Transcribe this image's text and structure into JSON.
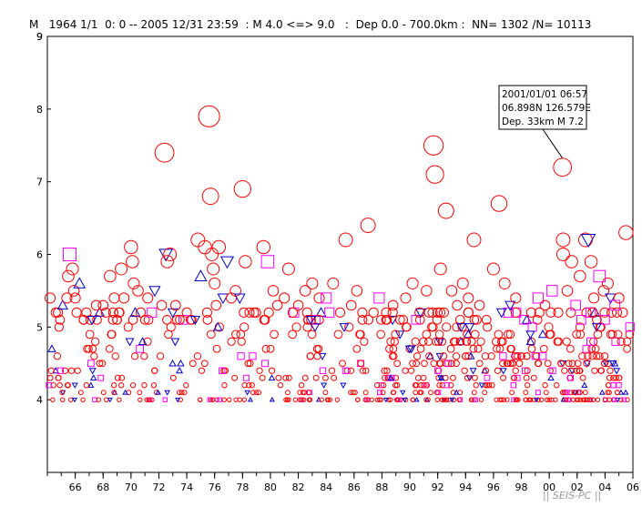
{
  "header": {
    "text": "M   1964 1/1  0: 0 -- 2005 12/31 23:59  : M 4.0 <=> 9.0   :  Dep 0.0 - 700.0km :  NN= 1302 /N= 10113"
  },
  "footer": {
    "text": "|| SEIS-PC ||"
  },
  "chart_data": {
    "type": "scatter",
    "title": "",
    "xlabel": "",
    "ylabel": "",
    "xlim": [
      1964.0,
      2006.0
    ],
    "ylim": [
      3.0,
      9.0
    ],
    "x_tick_labels": [
      "66",
      "68",
      "70",
      "72",
      "74",
      "76",
      "78",
      "80",
      "82",
      "84",
      "86",
      "88",
      "90",
      "92",
      "94",
      "96",
      "98",
      "00",
      "02",
      "04",
      "06"
    ],
    "x_tick_values": [
      1966,
      1968,
      1970,
      1972,
      1974,
      1976,
      1978,
      1980,
      1982,
      1984,
      1986,
      1988,
      1990,
      1992,
      1994,
      1996,
      1998,
      2000,
      2002,
      2004,
      2006
    ],
    "y_tick_labels": [
      "4",
      "5",
      "6",
      "7",
      "8",
      "9"
    ],
    "y_tick_values": [
      4,
      5,
      6,
      7,
      8,
      9
    ],
    "grid": false,
    "legend": "none",
    "colors": {
      "circle": "#ff0000",
      "square": "#ff00ff",
      "triangle_up": "#0000cc",
      "triangle_down": "#0000cc"
    },
    "annotation": {
      "lines": [
        "2001/01/01 06:57",
        "06.898N  126.579E",
        "Dep. 33km    M 7.2"
      ],
      "point": [
        2000.95,
        7.2
      ]
    },
    "large_events": [
      [
        1964.2,
        5.4,
        "c"
      ],
      [
        1964.6,
        5.2,
        "c"
      ],
      [
        1965.1,
        5.3,
        "t_up"
      ],
      [
        1965.4,
        5.4,
        "c"
      ],
      [
        1965.5,
        5.7,
        "c"
      ],
      [
        1965.6,
        6.0,
        "s"
      ],
      [
        1965.8,
        5.8,
        "c"
      ],
      [
        1965.9,
        5.5,
        "c"
      ],
      [
        1966.0,
        5.4,
        "c"
      ],
      [
        1966.1,
        5.2,
        "c"
      ],
      [
        1966.3,
        5.6,
        "t_up"
      ],
      [
        1966.6,
        5.1,
        "c"
      ],
      [
        1966.8,
        5.2,
        "c"
      ],
      [
        1967.2,
        5.1,
        "t_down"
      ],
      [
        1967.5,
        5.3,
        "c"
      ],
      [
        1968.0,
        5.3,
        "c"
      ],
      [
        1968.2,
        5.2,
        "c"
      ],
      [
        1968.5,
        5.7,
        "c"
      ],
      [
        1968.8,
        5.4,
        "c"
      ],
      [
        1969.0,
        5.1,
        "c"
      ],
      [
        1969.3,
        5.8,
        "c"
      ],
      [
        1969.5,
        5.4,
        "c"
      ],
      [
        1969.8,
        5.0,
        "c"
      ],
      [
        1970.0,
        6.1,
        "c"
      ],
      [
        1970.1,
        5.9,
        "c"
      ],
      [
        1970.2,
        5.6,
        "c"
      ],
      [
        1970.3,
        5.2,
        "t_up"
      ],
      [
        1970.5,
        5.5,
        "c"
      ],
      [
        1970.7,
        5.2,
        "c"
      ],
      [
        1971.0,
        5.1,
        "c"
      ],
      [
        1971.2,
        5.4,
        "c"
      ],
      [
        1971.7,
        5.5,
        "t_down"
      ],
      [
        1971.5,
        5.2,
        "s"
      ],
      [
        1972.2,
        5.3,
        "c"
      ],
      [
        1972.4,
        7.4,
        "c"
      ],
      [
        1972.5,
        6.0,
        "t_down"
      ],
      [
        1972.6,
        5.9,
        "c"
      ],
      [
        1972.8,
        6.0,
        "c"
      ],
      [
        1973.0,
        5.2,
        "t_down"
      ],
      [
        1973.2,
        5.3,
        "c"
      ],
      [
        1973.5,
        5.1,
        "c"
      ],
      [
        1974.0,
        5.2,
        "c"
      ],
      [
        1974.6,
        5.1,
        "t_down"
      ],
      [
        1974.8,
        6.2,
        "c"
      ],
      [
        1975.0,
        5.7,
        "t_up"
      ],
      [
        1975.3,
        6.1,
        "c"
      ],
      [
        1975.6,
        7.9,
        "c"
      ],
      [
        1975.7,
        6.8,
        "c"
      ],
      [
        1975.8,
        6.0,
        "c"
      ],
      [
        1975.9,
        5.8,
        "c"
      ],
      [
        1976.0,
        5.6,
        "c"
      ],
      [
        1976.1,
        5.3,
        "c"
      ],
      [
        1976.3,
        6.1,
        "c"
      ],
      [
        1976.6,
        5.4,
        "t_down"
      ],
      [
        1976.9,
        5.9,
        "t_down"
      ],
      [
        1977.2,
        5.4,
        "c"
      ],
      [
        1977.5,
        5.5,
        "c"
      ],
      [
        1977.8,
        5.4,
        "t_down"
      ],
      [
        1978.0,
        6.9,
        "c"
      ],
      [
        1978.2,
        5.9,
        "c"
      ],
      [
        1978.5,
        5.2,
        "c"
      ],
      [
        1979.5,
        6.1,
        "c"
      ],
      [
        1979.8,
        5.9,
        "s"
      ],
      [
        1980.2,
        5.5,
        "c"
      ],
      [
        1980.5,
        5.3,
        "c"
      ],
      [
        1981.0,
        5.4,
        "c"
      ],
      [
        1981.3,
        5.8,
        "c"
      ],
      [
        1981.6,
        5.2,
        "c"
      ],
      [
        1982.0,
        5.3,
        "c"
      ],
      [
        1982.5,
        5.5,
        "c"
      ],
      [
        1982.9,
        5.1,
        "t_down"
      ],
      [
        1983.0,
        5.6,
        "c"
      ],
      [
        1983.5,
        5.4,
        "c"
      ],
      [
        1984.0,
        5.4,
        "s"
      ],
      [
        1984.5,
        5.6,
        "c"
      ],
      [
        1985.0,
        5.2,
        "c"
      ],
      [
        1985.4,
        6.2,
        "c"
      ],
      [
        1985.8,
        5.3,
        "c"
      ],
      [
        1986.2,
        5.5,
        "c"
      ],
      [
        1986.6,
        5.1,
        "c"
      ],
      [
        1987.0,
        6.4,
        "c"
      ],
      [
        1987.4,
        5.2,
        "c"
      ],
      [
        1987.8,
        5.4,
        "s"
      ],
      [
        1988.3,
        5.2,
        "c"
      ],
      [
        1988.8,
        5.3,
        "c"
      ],
      [
        1989.3,
        5.1,
        "c"
      ],
      [
        1989.7,
        5.4,
        "c"
      ],
      [
        1990.2,
        5.6,
        "c"
      ],
      [
        1990.7,
        5.2,
        "c"
      ],
      [
        1991.2,
        5.5,
        "c"
      ],
      [
        1991.7,
        7.5,
        "c"
      ],
      [
        1991.8,
        7.1,
        "c"
      ],
      [
        1992.2,
        5.8,
        "c"
      ],
      [
        1992.6,
        6.6,
        "c"
      ],
      [
        1993.0,
        5.5,
        "c"
      ],
      [
        1993.4,
        5.3,
        "c"
      ],
      [
        1993.8,
        5.6,
        "c"
      ],
      [
        1994.2,
        5.4,
        "c"
      ],
      [
        1994.6,
        6.2,
        "c"
      ],
      [
        1995.0,
        5.3,
        "c"
      ],
      [
        1995.5,
        5.1,
        "c"
      ],
      [
        1996.0,
        5.8,
        "c"
      ],
      [
        1996.4,
        6.7,
        "c"
      ],
      [
        1996.8,
        5.6,
        "c"
      ],
      [
        1997.2,
        5.3,
        "t_down"
      ],
      [
        1997.6,
        5.4,
        "c"
      ],
      [
        1998.2,
        5.1,
        "s"
      ],
      [
        1998.7,
        5.2,
        "c"
      ],
      [
        1999.2,
        5.4,
        "s"
      ],
      [
        1999.7,
        5.3,
        "c"
      ],
      [
        2000.2,
        5.5,
        "s"
      ],
      [
        2000.95,
        7.2,
        "c"
      ],
      [
        2001.0,
        6.2,
        "c"
      ],
      [
        2001.0,
        6.0,
        "c"
      ],
      [
        2001.3,
        5.5,
        "c"
      ],
      [
        2001.6,
        5.9,
        "c"
      ],
      [
        2001.9,
        5.3,
        "s"
      ],
      [
        2002.2,
        5.7,
        "c"
      ],
      [
        2002.6,
        6.2,
        "c"
      ],
      [
        2002.8,
        6.2,
        "t_down"
      ],
      [
        2003.0,
        5.9,
        "c"
      ],
      [
        2003.2,
        5.4,
        "c"
      ],
      [
        2003.6,
        5.7,
        "s"
      ],
      [
        2003.9,
        5.5,
        "c"
      ],
      [
        2004.2,
        5.6,
        "c"
      ],
      [
        2004.4,
        5.4,
        "t_down"
      ],
      [
        2004.7,
        5.3,
        "s"
      ],
      [
        2005.0,
        5.4,
        "c"
      ],
      [
        2005.5,
        6.3,
        "c"
      ],
      [
        1964.1,
        4.2,
        "s"
      ]
    ]
  }
}
